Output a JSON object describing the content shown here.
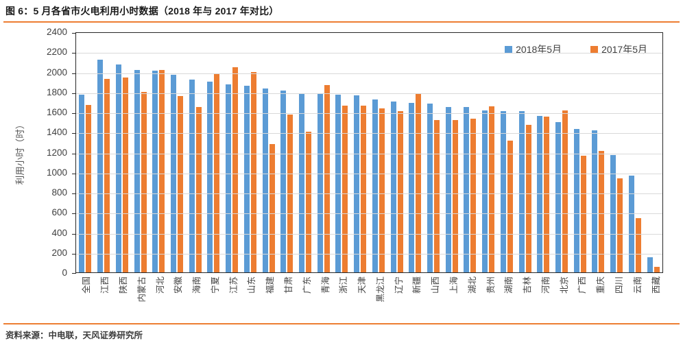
{
  "title": "图 6：5 月各省市火电利用小时数据（2018 年与 2017 年对比）",
  "source": "资料来源：中电联，天风证券研究所",
  "colors": {
    "accent_rule": "#ED7D31",
    "series_2018": "#5B9BD5",
    "series_2017": "#ED7D31",
    "gridline": "#D9D9D9",
    "axis_border": "#262626",
    "axis_text": "#404040"
  },
  "chart_data": {
    "type": "bar",
    "title": "",
    "xlabel": "",
    "ylabel": "利用小时（时）",
    "ylim": [
      0,
      2400
    ],
    "ytick_step": 200,
    "grid": true,
    "legend_position": "top-right",
    "categories": [
      "全国",
      "江西",
      "陕西",
      "内蒙古",
      "河北",
      "安徽",
      "海南",
      "宁夏",
      "江苏",
      "山东",
      "福建",
      "甘肃",
      "广东",
      "青海",
      "浙江",
      "天津",
      "黑龙江",
      "辽宁",
      "新疆",
      "山西",
      "上海",
      "湖北",
      "贵州",
      "湖南",
      "吉林",
      "河南",
      "北京",
      "广西",
      "重庆",
      "四川",
      "云南",
      "西藏"
    ],
    "series": [
      {
        "name": "2018年5月",
        "color": "#5B9BD5",
        "values": [
          1770,
          2120,
          2070,
          2020,
          2010,
          1970,
          1920,
          1900,
          1875,
          1860,
          1835,
          1810,
          1785,
          1775,
          1770,
          1765,
          1720,
          1700,
          1690,
          1680,
          1650,
          1645,
          1615,
          1610,
          1605,
          1560,
          1500,
          1430,
          1415,
          1170,
          965,
          150
        ]
      },
      {
        "name": "2017年5月",
        "color": "#ED7D31",
        "values": [
          1670,
          1930,
          1940,
          1800,
          2020,
          1760,
          1650,
          1985,
          2045,
          2000,
          1280,
          1575,
          1400,
          1870,
          1665,
          1660,
          1635,
          1610,
          1785,
          1515,
          1520,
          1530,
          1655,
          1310,
          1470,
          1550,
          1615,
          1160,
          1210,
          935,
          540,
          55
        ]
      }
    ]
  }
}
